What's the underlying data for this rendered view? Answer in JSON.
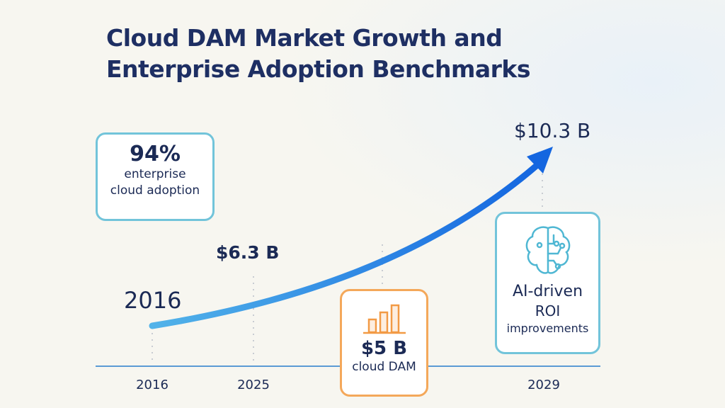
{
  "title": [
    "Cloud DAM Market Growth and",
    "Enterprise Adoption Benchmarks"
  ],
  "chart_data": {
    "type": "line",
    "categories": [
      "2016",
      "2025",
      "2029"
    ],
    "annotations": {
      "start_label": "2016",
      "mid_value": "$6.3 B",
      "end_value": "$10.3 B"
    },
    "colors": {
      "line_start": "#4fb0e8",
      "line_end": "#1668e0",
      "axis": "#5b9bd5"
    }
  },
  "callouts": {
    "adoption": {
      "value": "94%",
      "line1": "enterprise",
      "line2": "cloud adoption"
    },
    "dam": {
      "value": "$5 B",
      "label": "cloud DAM",
      "icon": "bar-chart-icon"
    },
    "ai": {
      "line1": "AI-driven",
      "line2": "ROI",
      "line3": "improvements",
      "icon": "brain-circuit-icon"
    }
  }
}
